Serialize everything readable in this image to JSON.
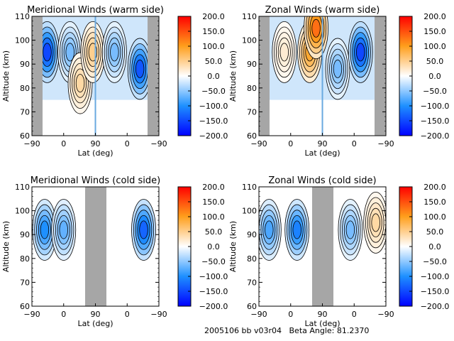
{
  "footer": {
    "date": "2005106",
    "id": "bb",
    "version": "v03r04",
    "beta_label": "Beta Angle:",
    "beta_value": "81.2370"
  },
  "colorbar": {
    "ticks": [
      "200.0",
      "150.0",
      "100.0",
      "50.0",
      "0.0",
      "-50.0",
      "-100.0",
      "-150.0",
      "-200.0"
    ],
    "range": [
      -200,
      200
    ],
    "colors": {
      "neg_max": "#0000ff",
      "neg_mid": "#1e90ff",
      "zero": "#ffffff",
      "pos_mid": "#ff9f1c",
      "pos_max": "#ff0000"
    }
  },
  "chart_data": [
    {
      "type": "heatmap",
      "title": "Meridional Winds (warm side)",
      "xlabel": "Lat (deg)",
      "ylabel": "Altitude (km)",
      "xticks": [
        "-90",
        "0",
        "90",
        "0",
        "-90"
      ],
      "yticks": [
        "60",
        "70",
        "80",
        "90",
        "100",
        "110"
      ],
      "ylim": [
        60,
        110
      ],
      "missing_bands": [
        "left edge",
        "right edge"
      ],
      "divider_at": "90",
      "features": [
        {
          "lat_pos": 0.12,
          "alt": 95,
          "value": -150
        },
        {
          "lat_pos": 0.3,
          "alt": 95,
          "value": -60
        },
        {
          "lat_pos": 0.38,
          "alt": 82,
          "value": 40
        },
        {
          "lat_pos": 0.48,
          "alt": 95,
          "value": 50
        },
        {
          "lat_pos": 0.65,
          "alt": 95,
          "value": -60
        },
        {
          "lat_pos": 0.85,
          "alt": 88,
          "value": -140
        }
      ]
    },
    {
      "type": "heatmap",
      "title": "Zonal Winds (warm side)",
      "xlabel": "Lat (deg)",
      "ylabel": "Altitude (km)",
      "xticks": [
        "-90",
        "0",
        "90",
        "0",
        "-90"
      ],
      "yticks": [
        "60",
        "70",
        "80",
        "90",
        "100",
        "110"
      ],
      "ylim": [
        60,
        110
      ],
      "missing_bands": [
        "left edge",
        "right edge"
      ],
      "divider_at": "90",
      "features": [
        {
          "lat_pos": 0.2,
          "alt": 95,
          "value": 20
        },
        {
          "lat_pos": 0.4,
          "alt": 95,
          "value": 90
        },
        {
          "lat_pos": 0.45,
          "alt": 105,
          "value": 130
        },
        {
          "lat_pos": 0.62,
          "alt": 88,
          "value": -60
        },
        {
          "lat_pos": 0.8,
          "alt": 95,
          "value": -150
        }
      ]
    },
    {
      "type": "heatmap",
      "title": "Meridional Winds (cold side)",
      "xlabel": "Lat (deg)",
      "ylabel": "Altitude (km)",
      "xticks": [
        "-90",
        "0",
        "90",
        "0",
        "-90"
      ],
      "yticks": [
        "60",
        "70",
        "80",
        "90",
        "100",
        "110"
      ],
      "ylim": [
        60,
        110
      ],
      "missing_bands": [
        "center"
      ],
      "features": [
        {
          "lat_pos": 0.1,
          "alt": 92,
          "value": -100
        },
        {
          "lat_pos": 0.25,
          "alt": 92,
          "value": -70
        },
        {
          "lat_pos": 0.88,
          "alt": 92,
          "value": -130
        }
      ]
    },
    {
      "type": "heatmap",
      "title": "Zonal Winds (cold side)",
      "xlabel": "Lat (deg)",
      "ylabel": "Altitude (km)",
      "xticks": [
        "-90",
        "0",
        "90",
        "0",
        "-90"
      ],
      "yticks": [
        "60",
        "70",
        "80",
        "90",
        "100",
        "110"
      ],
      "ylim": [
        60,
        110
      ],
      "missing_bands": [
        "center"
      ],
      "features": [
        {
          "lat_pos": 0.08,
          "alt": 92,
          "value": -80
        },
        {
          "lat_pos": 0.3,
          "alt": 92,
          "value": -110
        },
        {
          "lat_pos": 0.72,
          "alt": 92,
          "value": -60
        },
        {
          "lat_pos": 0.92,
          "alt": 95,
          "value": 40
        }
      ]
    }
  ]
}
